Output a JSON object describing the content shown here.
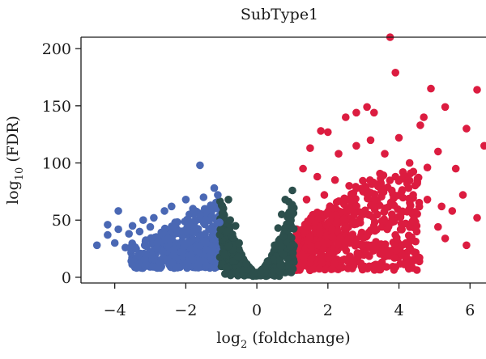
{
  "chart_data": {
    "type": "scatter",
    "title": "SubType1",
    "xlabel": {
      "prefix": "log",
      "sub": "2",
      "suffix": " (foldchange)"
    },
    "ylabel": {
      "prefix": "log",
      "sub": "10",
      "suffix": " (FDR)"
    },
    "xlim": [
      -4.95,
      6.45
    ],
    "ylim": [
      -5,
      210
    ],
    "xticks": [
      -4,
      -2,
      0,
      2,
      4,
      6
    ],
    "xtick_labels": [
      "−4",
      "−2",
      "0",
      "2",
      "4",
      "6"
    ],
    "yticks": [
      0,
      50,
      100,
      150,
      200
    ],
    "ytick_labels": [
      "0",
      "50",
      "100",
      "150",
      "200"
    ],
    "grid": false,
    "legend": "none",
    "series": [
      {
        "color": "#4a68b4",
        "x_range": [
          -4.5,
          -1.0
        ],
        "y_range": [
          5,
          98
        ],
        "points": [
          [
            -4.5,
            28
          ],
          [
            -4.2,
            37
          ],
          [
            -4.2,
            46
          ],
          [
            -4.0,
            30
          ],
          [
            -3.9,
            42
          ],
          [
            -3.9,
            58
          ],
          [
            -3.7,
            26
          ],
          [
            -3.6,
            38
          ],
          [
            -3.5,
            45
          ],
          [
            -3.4,
            25
          ],
          [
            -3.3,
            40
          ],
          [
            -3.2,
            50
          ],
          [
            -3.0,
            44
          ],
          [
            -2.9,
            52
          ],
          [
            -2.8,
            30
          ],
          [
            -2.6,
            58
          ],
          [
            -2.5,
            34
          ],
          [
            -2.4,
            62
          ],
          [
            -2.3,
            48
          ],
          [
            -2.2,
            40
          ],
          [
            -2.0,
            68
          ],
          [
            -1.9,
            55
          ],
          [
            -1.8,
            60
          ],
          [
            -1.7,
            42
          ],
          [
            -1.6,
            98
          ],
          [
            -1.5,
            70
          ],
          [
            -1.4,
            58
          ],
          [
            -1.3,
            63
          ],
          [
            -1.2,
            78
          ],
          [
            -1.1,
            72
          ],
          [
            -1.05,
            48
          ]
        ]
      },
      {
        "color": "#2c4f4c",
        "x_range": [
          -1.0,
          1.0
        ],
        "y_range": [
          0,
          76
        ],
        "points": [
          [
            -0.95,
            56
          ],
          [
            -0.8,
            68
          ],
          [
            -0.75,
            50
          ],
          [
            -0.6,
            45
          ],
          [
            -0.5,
            30
          ],
          [
            -0.3,
            12
          ],
          [
            -0.1,
            4
          ],
          [
            0.1,
            5
          ],
          [
            0.3,
            14
          ],
          [
            0.5,
            28
          ],
          [
            0.6,
            43
          ],
          [
            0.7,
            55
          ],
          [
            0.8,
            68
          ],
          [
            0.9,
            66
          ],
          [
            0.95,
            58
          ],
          [
            1.0,
            76
          ]
        ]
      },
      {
        "color": "#dc1c40",
        "x_range": [
          1.0,
          6.4
        ],
        "y_range": [
          5,
          210
        ],
        "points": [
          [
            3.75,
            210
          ],
          [
            3.9,
            179
          ],
          [
            4.9,
            165
          ],
          [
            6.2,
            164
          ],
          [
            3.1,
            149
          ],
          [
            5.3,
            149
          ],
          [
            2.8,
            144
          ],
          [
            3.3,
            144
          ],
          [
            2.5,
            140
          ],
          [
            4.7,
            140
          ],
          [
            5.9,
            130
          ],
          [
            6.4,
            115
          ],
          [
            1.8,
            128
          ],
          [
            2.0,
            127
          ],
          [
            2.8,
            115
          ],
          [
            3.2,
            120
          ],
          [
            4.0,
            122
          ],
          [
            4.6,
            133
          ],
          [
            5.1,
            110
          ],
          [
            5.6,
            95
          ],
          [
            1.5,
            113
          ],
          [
            2.3,
            108
          ],
          [
            3.6,
            108
          ],
          [
            4.3,
            100
          ],
          [
            4.8,
            96
          ],
          [
            1.3,
            95
          ],
          [
            1.7,
            88
          ],
          [
            2.2,
            85
          ],
          [
            2.6,
            80
          ],
          [
            3.0,
            78
          ],
          [
            3.5,
            90
          ],
          [
            3.9,
            88
          ],
          [
            4.4,
            72
          ],
          [
            4.8,
            68
          ],
          [
            5.2,
            62
          ],
          [
            5.5,
            58
          ],
          [
            5.8,
            72
          ],
          [
            5.1,
            44
          ],
          [
            5.3,
            34
          ],
          [
            5.9,
            28
          ],
          [
            6.2,
            52
          ],
          [
            4.5,
            40
          ],
          [
            4.2,
            30
          ],
          [
            3.8,
            55
          ],
          [
            1.4,
            68
          ],
          [
            1.9,
            72
          ],
          [
            2.4,
            66
          ],
          [
            3.3,
            62
          ]
        ]
      }
    ]
  }
}
